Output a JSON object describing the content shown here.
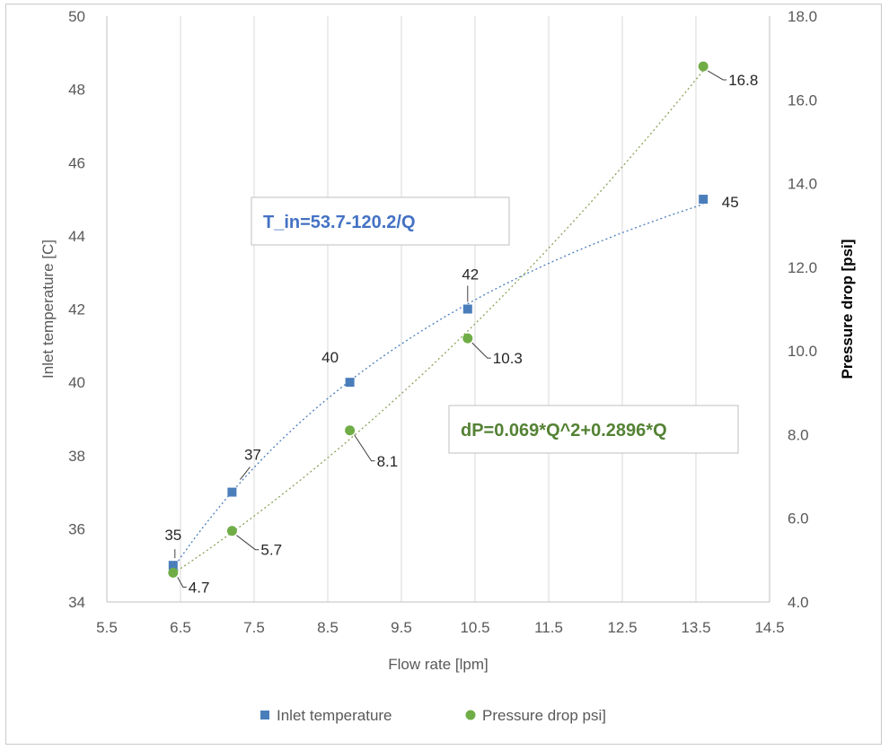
{
  "chart_data": {
    "type": "scatter",
    "xlabel": "Flow rate [lpm]",
    "ylabel": "Inlet temperature [C]",
    "y2label": "Pressure drop  [psi]",
    "xlim": [
      5.5,
      14.5
    ],
    "xticks": [
      "5.5",
      "6.5",
      "7.5",
      "8.5",
      "9.5",
      "10.5",
      "11.5",
      "12.5",
      "13.5",
      "14.5"
    ],
    "ylim": [
      34,
      50
    ],
    "yticks": [
      "34",
      "36",
      "38",
      "40",
      "42",
      "44",
      "46",
      "48",
      "50"
    ],
    "y2lim": [
      4.0,
      18.0
    ],
    "y2ticks": [
      "4.0",
      "6.0",
      "8.0",
      "10.0",
      "12.0",
      "14.0",
      "16.0",
      "18.0"
    ],
    "grid": "vertical",
    "legend_position": "bottom",
    "series": [
      {
        "name": "Inlet temperature",
        "axis": "left",
        "marker": "square",
        "color": "#4a7ebb",
        "x": [
          6.4,
          7.2,
          8.8,
          10.4,
          13.6
        ],
        "y": [
          35,
          37,
          40,
          42,
          45
        ],
        "labels": [
          "35",
          "37",
          "40",
          "42",
          "45"
        ],
        "trendline": {
          "equation": "T_in=53.7-120.2/Q",
          "a": 53.7,
          "b": -120.2,
          "color": "#4472c4"
        }
      },
      {
        "name": "Pressure drop psi]",
        "axis": "right",
        "marker": "circle",
        "color": "#70ad47",
        "x": [
          6.4,
          7.2,
          8.8,
          10.4,
          13.6
        ],
        "y": [
          4.7,
          5.7,
          8.1,
          10.3,
          16.8
        ],
        "labels": [
          "4.7",
          "5.7",
          "8.1",
          "10.3",
          "16.8"
        ],
        "trendline": {
          "equation": "dP=0.069*Q^2+0.2896*Q",
          "a": 0.069,
          "b": 0.2896,
          "color": "#548235"
        }
      }
    ]
  }
}
